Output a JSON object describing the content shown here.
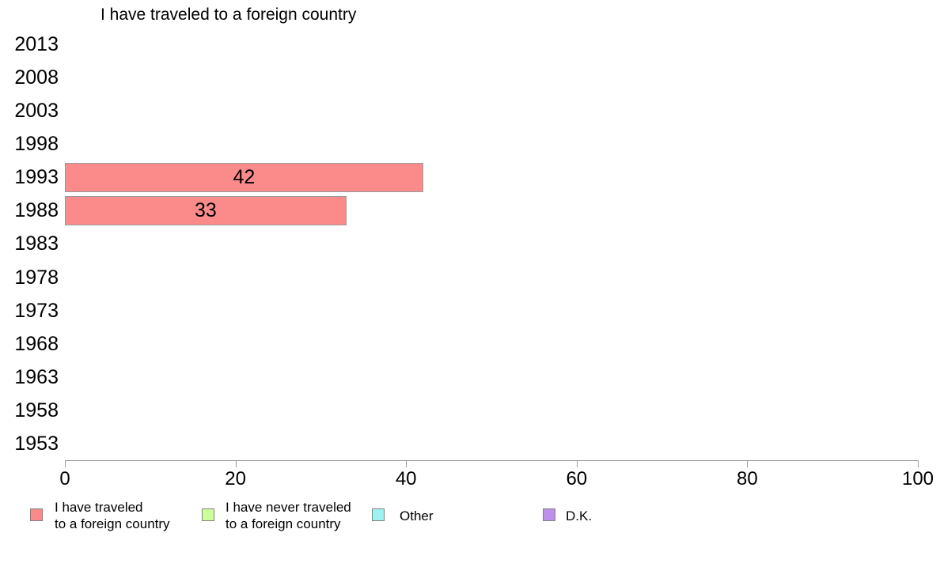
{
  "chart_data": {
    "type": "bar",
    "orientation": "horizontal",
    "title": "I have traveled to a foreign country",
    "categories": [
      "2013",
      "2008",
      "2003",
      "1998",
      "1993",
      "1988",
      "1983",
      "1978",
      "1973",
      "1968",
      "1963",
      "1958",
      "1953"
    ],
    "series": [
      {
        "name": "I have traveled to a foreign country",
        "color": "#FB8B8B",
        "values": [
          null,
          null,
          null,
          null,
          42,
          33,
          null,
          null,
          null,
          null,
          null,
          null,
          null
        ]
      },
      {
        "name": "I have never traveled to a foreign country",
        "color": "#CCFF99",
        "values": [
          null,
          null,
          null,
          null,
          null,
          null,
          null,
          null,
          null,
          null,
          null,
          null,
          null
        ]
      },
      {
        "name": "Other",
        "color": "#9FF2F2",
        "values": [
          null,
          null,
          null,
          null,
          null,
          null,
          null,
          null,
          null,
          null,
          null,
          null,
          null
        ]
      },
      {
        "name": "D.K.",
        "color": "#BE90EC",
        "values": [
          null,
          null,
          null,
          null,
          null,
          null,
          null,
          null,
          null,
          null,
          null,
          null,
          null
        ]
      }
    ],
    "bar_labels": [
      {
        "category": "1993",
        "value": "42"
      },
      {
        "category": "1988",
        "value": "33"
      }
    ],
    "xlabel": "",
    "ylabel": "",
    "xlim": [
      0,
      100
    ],
    "x_ticks": [
      "0",
      "20",
      "40",
      "60",
      "80",
      "100"
    ],
    "grid": false,
    "legend_position": "bottom",
    "bar_border_color": "#999999",
    "axis_color": "#999999",
    "background_color": "#FFFFFF"
  },
  "legend": {
    "items": [
      {
        "lines": [
          "I have traveled",
          "to a foreign country"
        ],
        "color": "#FB8B8B"
      },
      {
        "lines": [
          "I have never traveled",
          "to a foreign country"
        ],
        "color": "#CCFF99"
      },
      {
        "lines": [
          "Other"
        ],
        "color": "#9FF2F2"
      },
      {
        "lines": [
          "D.K."
        ],
        "color": "#BE90EC"
      }
    ]
  }
}
